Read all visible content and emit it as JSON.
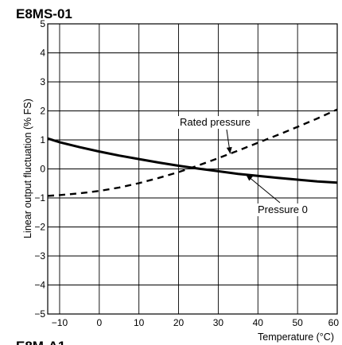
{
  "chart_data": {
    "type": "line",
    "title": "E8MS-01",
    "xlabel": "Temperature (°C)",
    "ylabel": "Linear output fluctuation (% FS)",
    "xlim": [
      -13,
      60
    ],
    "ylim": [
      -5,
      5
    ],
    "x_ticks": [
      -10,
      0,
      10,
      20,
      30,
      40,
      50,
      60
    ],
    "x_tick_labels": [
      "−10",
      "0",
      "10",
      "20",
      "30",
      "40",
      "50",
      "60"
    ],
    "y_ticks": [
      5,
      4,
      3,
      2,
      1,
      0,
      -1,
      -2,
      -3,
      -4,
      -5
    ],
    "y_tick_labels": [
      "5",
      "4",
      "3",
      "2",
      "1",
      "0",
      "−1",
      "−2",
      "−3",
      "−4",
      "−5"
    ],
    "grid": true,
    "series": [
      {
        "name": "Rated pressure",
        "style": "dashed",
        "color": "#000000",
        "x": [
          -13,
          -10,
          -5,
          0,
          5,
          10,
          15,
          20,
          25,
          30,
          35,
          40,
          45,
          50,
          55,
          60
        ],
        "y": [
          -0.93,
          -0.9,
          -0.84,
          -0.76,
          -0.64,
          -0.49,
          -0.31,
          -0.11,
          0.12,
          0.37,
          0.63,
          0.9,
          1.17,
          1.45,
          1.74,
          2.05
        ]
      },
      {
        "name": "Pressure 0",
        "style": "solid",
        "color": "#000000",
        "x": [
          -13,
          -10,
          -5,
          0,
          5,
          10,
          15,
          20,
          25,
          30,
          35,
          40,
          45,
          50,
          55,
          60
        ],
        "y": [
          1.05,
          0.92,
          0.75,
          0.6,
          0.46,
          0.34,
          0.22,
          0.11,
          0.01,
          -0.08,
          -0.17,
          -0.24,
          -0.31,
          -0.37,
          -0.43,
          -0.47
        ]
      }
    ],
    "annotations": [
      {
        "text": "Rated pressure",
        "series": "Rated pressure"
      },
      {
        "text": "Pressure 0",
        "series": "Pressure 0"
      }
    ],
    "footer_partial_text": "E8M-A1"
  }
}
